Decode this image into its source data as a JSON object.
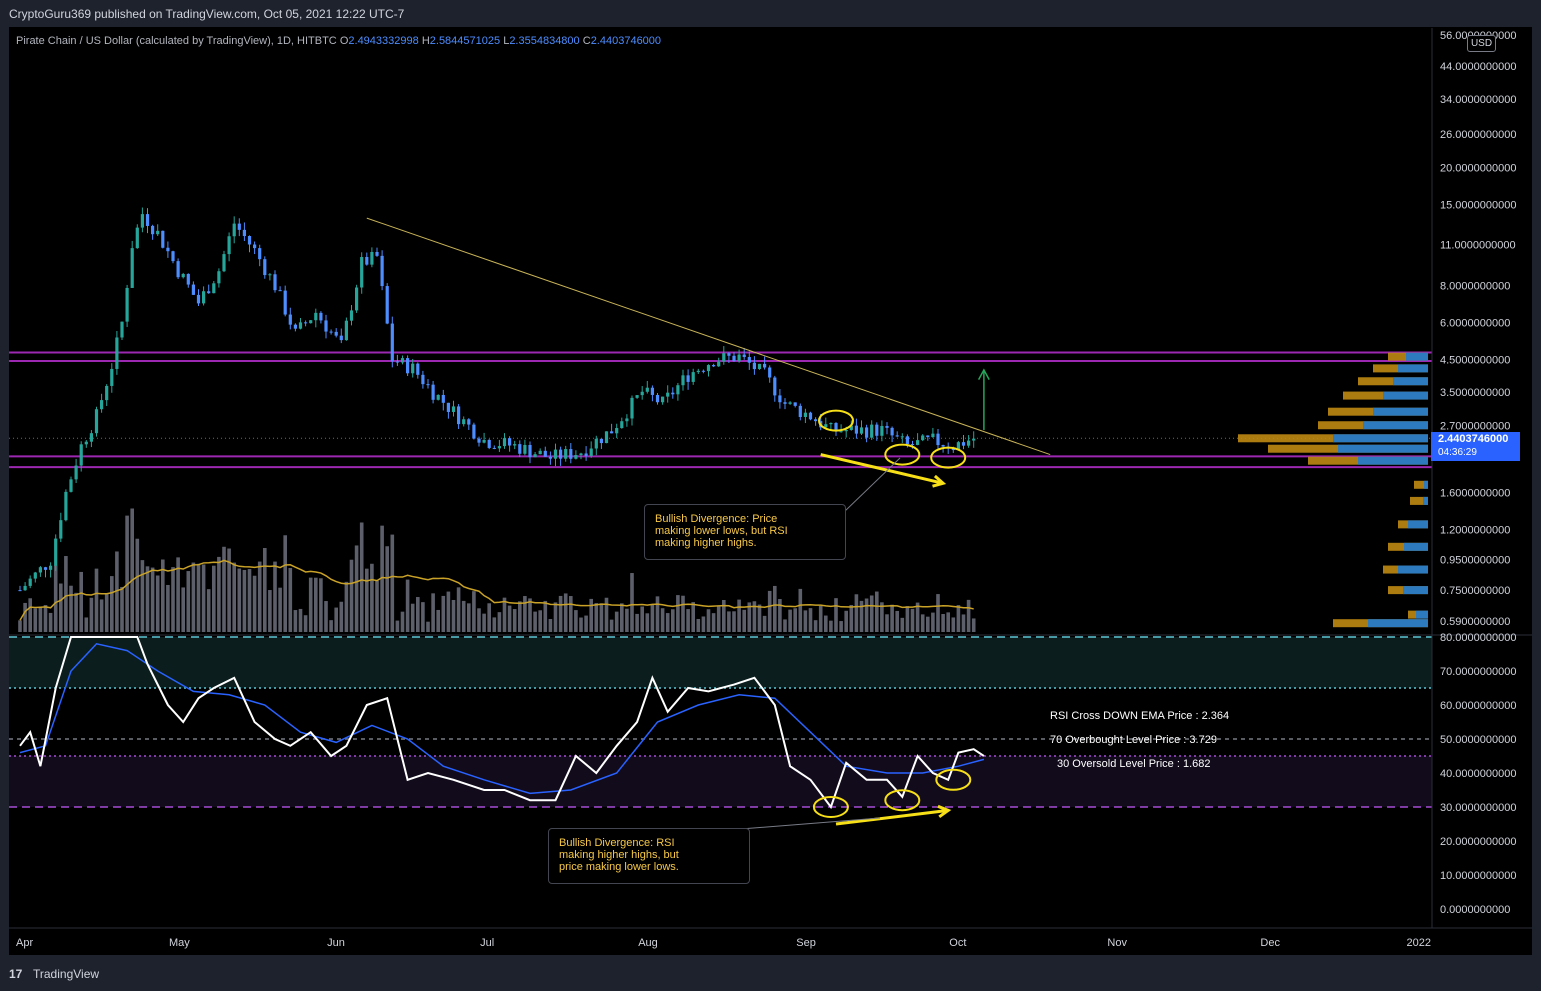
{
  "header": {
    "publisher": "CryptoGuru369 published on TradingView.com, Oct 05, 2021 12:22 UTC-7"
  },
  "symbol": {
    "name": "Pirate Chain / US Dollar (calculated by TradingView), 1D, HITBTC",
    "o_label": "O",
    "o": "2.4943332998",
    "h_label": "H",
    "h": "2.5844571025",
    "l_label": "L",
    "l": "2.3554834800",
    "c": "2.4403746000"
  },
  "currency": "USD",
  "last_price": {
    "price": "2.4403746000",
    "countdown": "04:36:29"
  },
  "notes": {
    "price": "Bullish Divergence: Price\nmaking lower lows, but RSI\nmaking higher highs.",
    "rsi": "Bullish Divergence: RSI\nmaking higher highs, but\nprice making lower lows."
  },
  "rsi_labels": {
    "cross": "RSI Cross DOWN EMA Price : 2.364",
    "overbought": "70 Overbought Level Price : 3.729",
    "oversold": "30 Oversold Level Price : 1.682"
  },
  "footer": {
    "brand": "TradingView"
  },
  "colors": {
    "bg": "#000000",
    "up": "#26a69a",
    "down": "#4c8dff",
    "purple": "#9c27b0",
    "trendline": "#c9b458",
    "rsi": "#ffffff",
    "rsi_ema": "#2962ff",
    "annotation": "#f7e017"
  },
  "chart_data": [
    {
      "type": "candlestick",
      "scale": "log",
      "y_ticks": [
        "56.0000000000",
        "44.0000000000",
        "34.0000000000",
        "26.0000000000",
        "20.0000000000",
        "15.0000000000",
        "11.0000000000",
        "8.0000000000",
        "6.0000000000",
        "4.5000000000",
        "3.5000000000",
        "2.7000000000",
        "1.6000000000",
        "1.2000000000",
        "0.9500000000",
        "0.7500000000",
        "0.5900000000"
      ],
      "y_tick_values": [
        56,
        44,
        34,
        26,
        20,
        15,
        11,
        8,
        6,
        4.5,
        3.5,
        2.7,
        1.6,
        1.2,
        0.95,
        0.75,
        0.59
      ],
      "x_ticks": [
        "Apr",
        "May",
        "Jun",
        "Jul",
        "Aug",
        "Sep",
        "Oct",
        "Nov",
        "Dec",
        "2022"
      ],
      "x_tick_dates": [
        "2021-04-01",
        "2021-05-01",
        "2021-06-01",
        "2021-07-01",
        "2021-08-01",
        "2021-09-01",
        "2021-10-01",
        "2021-11-01",
        "2021-12-01",
        "2022-01-01"
      ],
      "close_series": [
        [
          "2021-04-01",
          0.75
        ],
        [
          "2021-04-07",
          0.95
        ],
        [
          "2021-04-10",
          1.6
        ],
        [
          "2021-04-13",
          2.3
        ],
        [
          "2021-04-16",
          2.9
        ],
        [
          "2021-04-19",
          4.3
        ],
        [
          "2021-04-21",
          6.0
        ],
        [
          "2021-04-23",
          11.0
        ],
        [
          "2021-04-25",
          14.0
        ],
        [
          "2021-04-28",
          12.0
        ],
        [
          "2021-05-02",
          9.0
        ],
        [
          "2021-05-06",
          7.0
        ],
        [
          "2021-05-10",
          9.0
        ],
        [
          "2021-05-13",
          13.0
        ],
        [
          "2021-05-17",
          10.5
        ],
        [
          "2021-05-21",
          8.0
        ],
        [
          "2021-05-25",
          5.5
        ],
        [
          "2021-05-29",
          6.5
        ],
        [
          "2021-06-03",
          5.0
        ],
        [
          "2021-06-07",
          9.5
        ],
        [
          "2021-06-10",
          10.0
        ],
        [
          "2021-06-13",
          4.5
        ],
        [
          "2021-06-17",
          4.2
        ],
        [
          "2021-06-21",
          3.5
        ],
        [
          "2021-06-25",
          3.0
        ],
        [
          "2021-07-01",
          2.4
        ],
        [
          "2021-07-07",
          2.3
        ],
        [
          "2021-07-14",
          2.1
        ],
        [
          "2021-07-20",
          2.2
        ],
        [
          "2021-07-26",
          2.6
        ],
        [
          "2021-08-01",
          3.5
        ],
        [
          "2021-08-05",
          3.2
        ],
        [
          "2021-08-10",
          4.0
        ],
        [
          "2021-08-15",
          4.5
        ],
        [
          "2021-08-20",
          4.6
        ],
        [
          "2021-08-25",
          4.0
        ],
        [
          "2021-08-29",
          3.2
        ],
        [
          "2021-09-03",
          2.9
        ],
        [
          "2021-09-07",
          2.6
        ],
        [
          "2021-09-12",
          2.6
        ],
        [
          "2021-09-17",
          2.6
        ],
        [
          "2021-09-22",
          2.3
        ],
        [
          "2021-09-27",
          2.4
        ],
        [
          "2021-10-01",
          2.3
        ],
        [
          "2021-10-05",
          2.44
        ]
      ],
      "horizontal_levels": [
        4.75,
        4.45,
        2.12,
        1.95
      ],
      "trendline": [
        [
          "2021-06-08",
          13.5
        ],
        [
          "2021-10-20",
          2.15
        ]
      ],
      "annotations": [
        {
          "type": "ellipse",
          "date": "2021-09-08",
          "price": 2.8
        },
        {
          "type": "ellipse",
          "date": "2021-09-21",
          "price": 2.15
        },
        {
          "type": "ellipse",
          "date": "2021-09-30",
          "price": 2.1
        },
        {
          "type": "arrow",
          "from": [
            "2021-09-05",
            2.15
          ],
          "to": [
            "2021-09-29",
            1.72
          ]
        },
        {
          "type": "arrow",
          "from": [
            "2021-10-07",
            2.6
          ],
          "to": [
            "2021-10-07",
            4.15
          ]
        }
      ]
    },
    {
      "type": "bar",
      "name": "Volume",
      "has_moving_average": true
    },
    {
      "type": "line",
      "ylim": [
        0,
        80
      ],
      "y_ticks": [
        "80.0000000000",
        "70.0000000000",
        "60.0000000000",
        "50.0000000000",
        "40.0000000000",
        "30.0000000000",
        "20.0000000000",
        "10.0000000000",
        "0.0000000000"
      ],
      "y_tick_values": [
        80,
        70,
        60,
        50,
        40,
        30,
        20,
        10,
        0
      ],
      "levels": [
        80,
        65,
        50,
        45,
        30
      ],
      "rsi": [
        [
          "2021-04-01",
          48
        ],
        [
          "2021-04-03",
          52
        ],
        [
          "2021-04-05",
          42
        ],
        [
          "2021-04-08",
          65
        ],
        [
          "2021-04-11",
          80
        ],
        [
          "2021-04-14",
          80
        ],
        [
          "2021-04-17",
          80
        ],
        [
          "2021-04-20",
          80
        ],
        [
          "2021-04-24",
          80
        ],
        [
          "2021-04-26",
          72
        ],
        [
          "2021-04-30",
          60
        ],
        [
          "2021-05-03",
          55
        ],
        [
          "2021-05-06",
          62
        ],
        [
          "2021-05-09",
          65
        ],
        [
          "2021-05-13",
          68
        ],
        [
          "2021-05-17",
          55
        ],
        [
          "2021-05-21",
          50
        ],
        [
          "2021-05-24",
          48
        ],
        [
          "2021-05-28",
          52
        ],
        [
          "2021-06-01",
          45
        ],
        [
          "2021-06-04",
          48
        ],
        [
          "2021-06-08",
          60
        ],
        [
          "2021-06-12",
          62
        ],
        [
          "2021-06-16",
          38
        ],
        [
          "2021-06-20",
          40
        ],
        [
          "2021-06-25",
          38
        ],
        [
          "2021-07-01",
          35
        ],
        [
          "2021-07-05",
          35
        ],
        [
          "2021-07-10",
          32
        ],
        [
          "2021-07-15",
          32
        ],
        [
          "2021-07-19",
          45
        ],
        [
          "2021-07-23",
          40
        ],
        [
          "2021-07-27",
          48
        ],
        [
          "2021-07-31",
          55
        ],
        [
          "2021-08-03",
          68
        ],
        [
          "2021-08-06",
          58
        ],
        [
          "2021-08-10",
          65
        ],
        [
          "2021-08-14",
          64
        ],
        [
          "2021-08-19",
          66
        ],
        [
          "2021-08-23",
          68
        ],
        [
          "2021-08-27",
          60
        ],
        [
          "2021-08-30",
          42
        ],
        [
          "2021-09-03",
          38
        ],
        [
          "2021-09-07",
          30
        ],
        [
          "2021-09-10",
          43
        ],
        [
          "2021-09-14",
          38
        ],
        [
          "2021-09-18",
          38
        ],
        [
          "2021-09-21",
          33
        ],
        [
          "2021-09-24",
          45
        ],
        [
          "2021-09-27",
          40
        ],
        [
          "2021-09-30",
          38
        ],
        [
          "2021-10-02",
          46
        ],
        [
          "2021-10-05",
          47
        ],
        [
          "2021-10-07",
          45
        ]
      ],
      "rsi_ema": [
        [
          "2021-04-01",
          46
        ],
        [
          "2021-04-06",
          48
        ],
        [
          "2021-04-11",
          70
        ],
        [
          "2021-04-16",
          78
        ],
        [
          "2021-04-22",
          76
        ],
        [
          "2021-04-28",
          70
        ],
        [
          "2021-05-05",
          64
        ],
        [
          "2021-05-12",
          63
        ],
        [
          "2021-05-19",
          60
        ],
        [
          "2021-05-26",
          52
        ],
        [
          "2021-06-02",
          49
        ],
        [
          "2021-06-09",
          54
        ],
        [
          "2021-06-16",
          50
        ],
        [
          "2021-06-23",
          42
        ],
        [
          "2021-07-01",
          38
        ],
        [
          "2021-07-10",
          34
        ],
        [
          "2021-07-18",
          35
        ],
        [
          "2021-07-27",
          40
        ],
        [
          "2021-08-04",
          55
        ],
        [
          "2021-08-12",
          60
        ],
        [
          "2021-08-20",
          63
        ],
        [
          "2021-08-27",
          62
        ],
        [
          "2021-09-03",
          52
        ],
        [
          "2021-09-10",
          42
        ],
        [
          "2021-09-18",
          40
        ],
        [
          "2021-09-25",
          40
        ],
        [
          "2021-10-02",
          42
        ],
        [
          "2021-10-07",
          44
        ]
      ],
      "annotations": [
        {
          "type": "ellipse",
          "date": "2021-09-07",
          "value": 30
        },
        {
          "type": "ellipse",
          "date": "2021-09-21",
          "value": 32
        },
        {
          "type": "ellipse",
          "date": "2021-10-01",
          "value": 38
        },
        {
          "type": "arrow",
          "from": [
            "2021-09-08",
            25
          ],
          "to": [
            "2021-09-30",
            29
          ]
        }
      ]
    }
  ]
}
